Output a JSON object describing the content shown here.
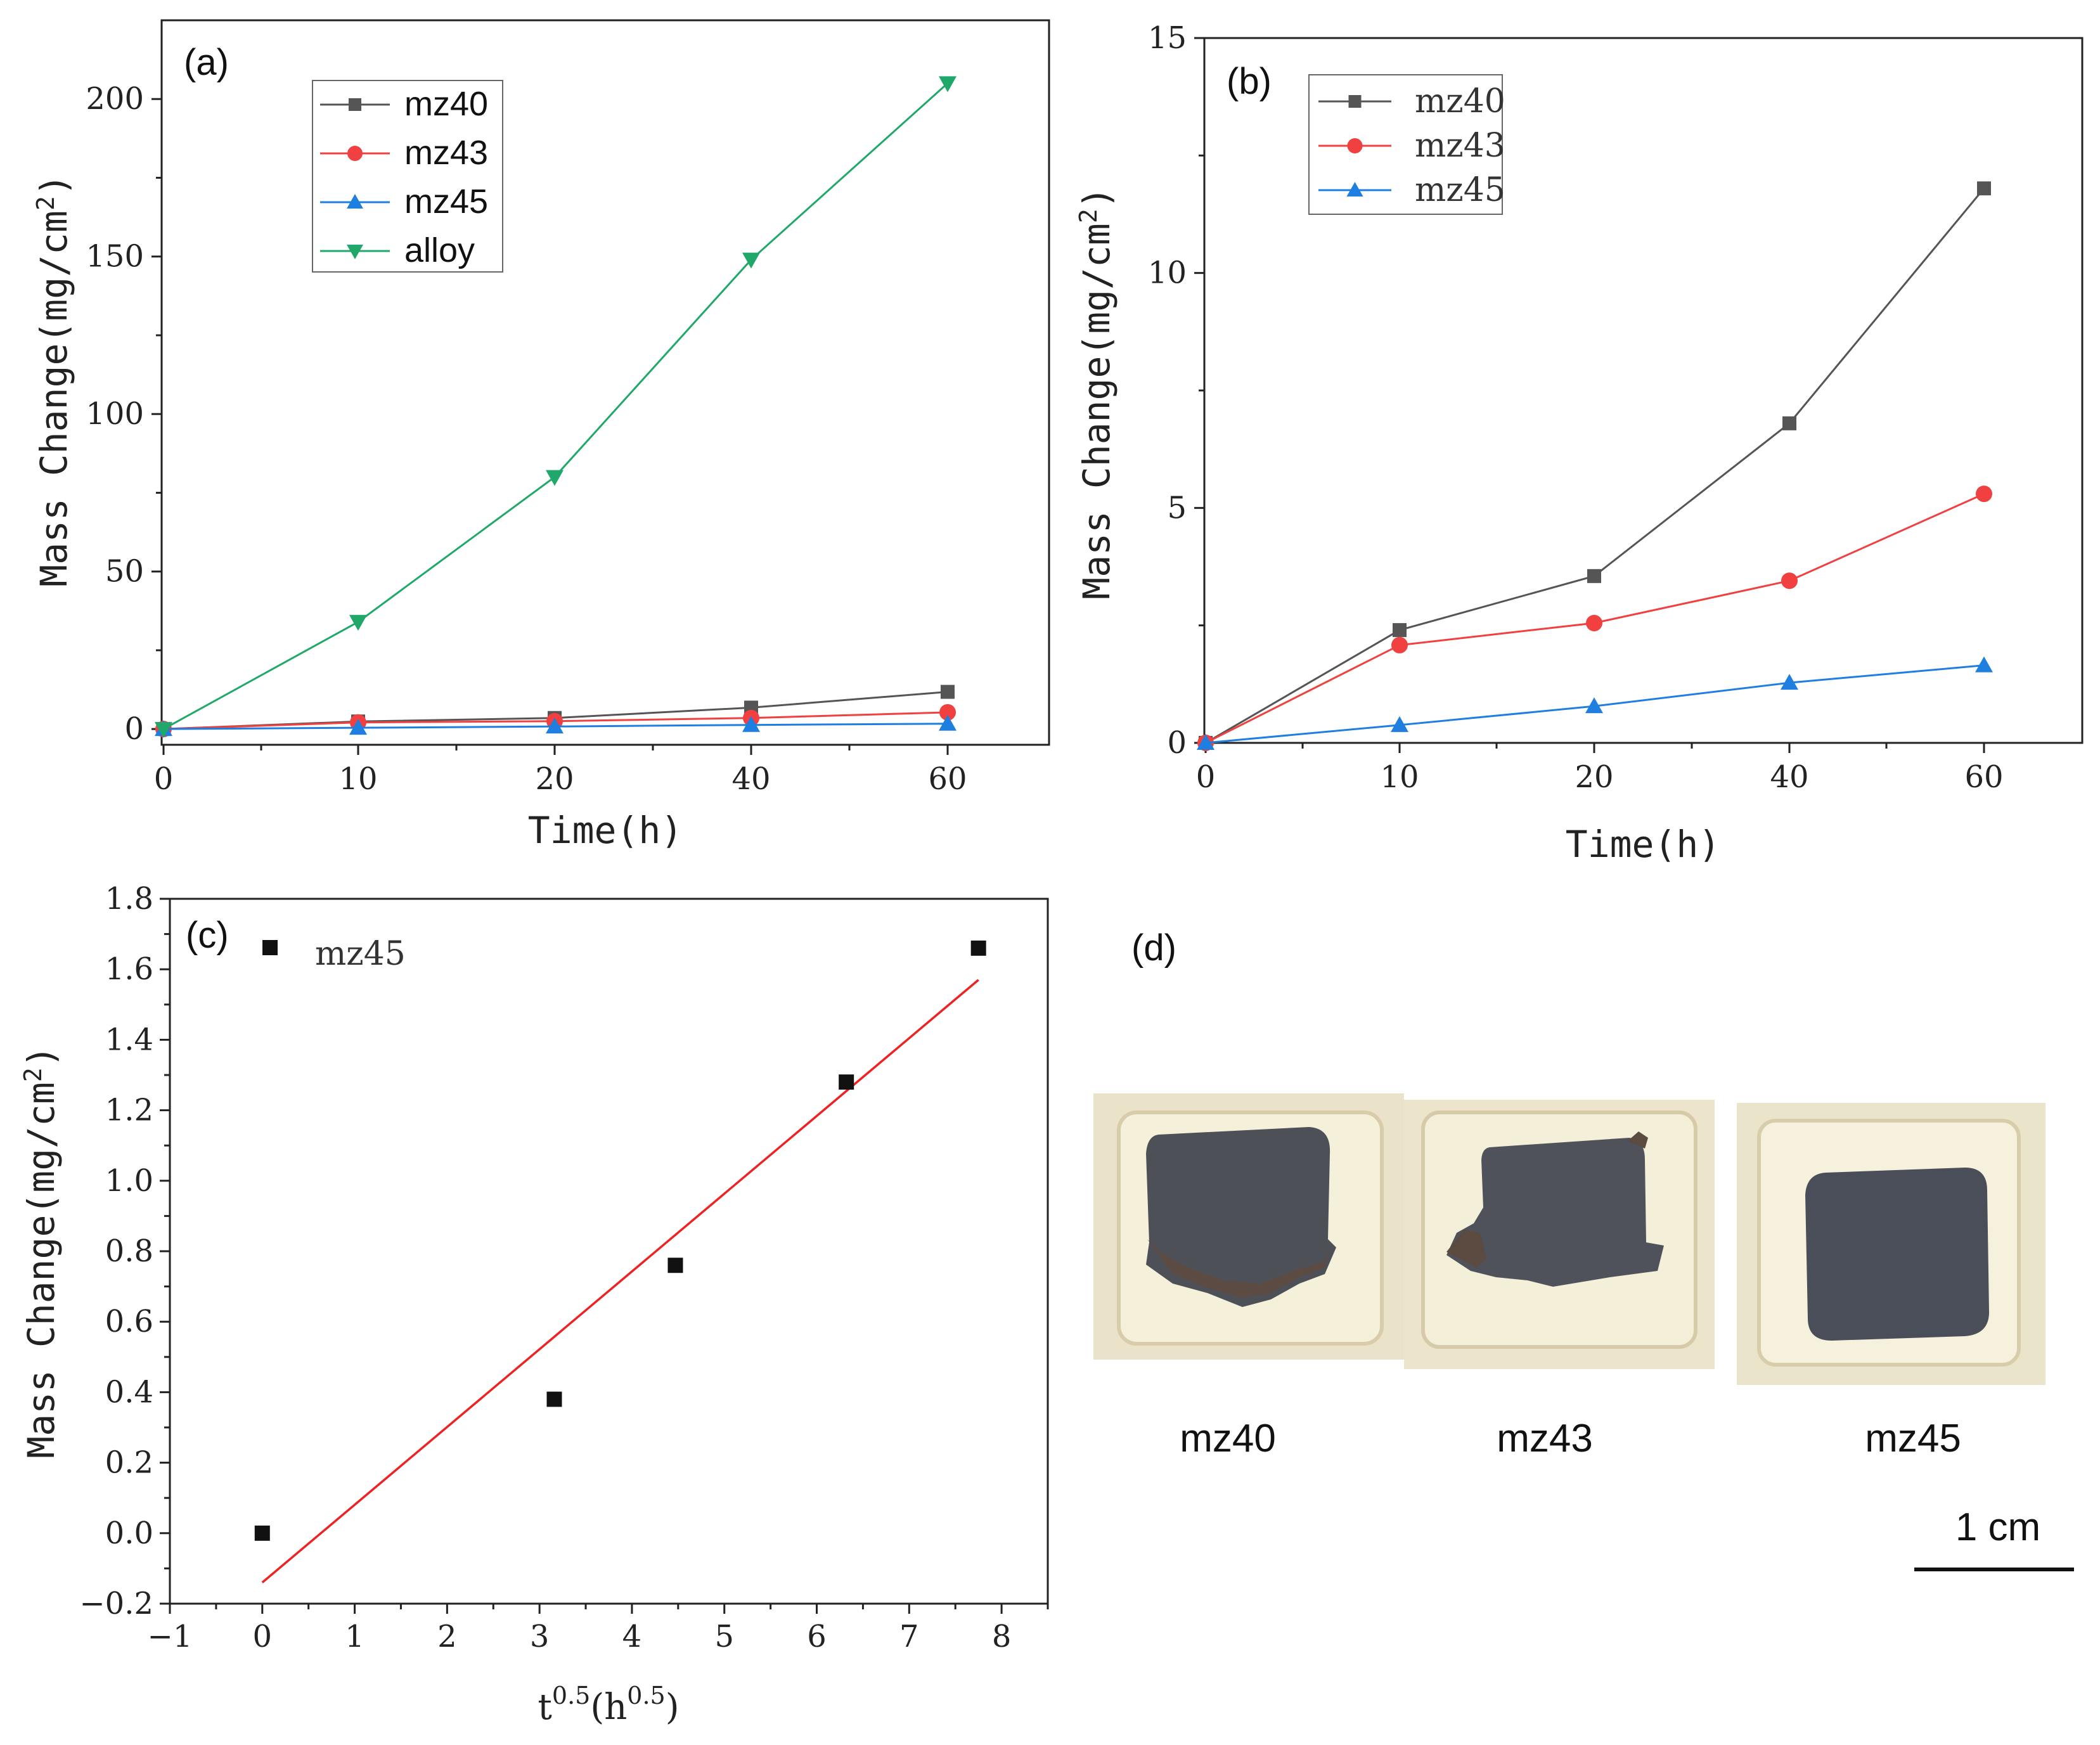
{
  "chart_data": [
    {
      "panel": "(a)",
      "type": "line",
      "xlabel": "Time(h)",
      "ylabel": "Mass Change(mg/cm²)",
      "x_categories": [
        "0",
        "10",
        "20",
        "40",
        "60"
      ],
      "yticks": [
        "0",
        "50",
        "100",
        "150",
        "200"
      ],
      "ylim": [
        -5,
        225
      ],
      "legend_position": "top-center",
      "series": [
        {
          "name": "mz40",
          "color": "#555555",
          "marker": "square",
          "values": [
            0,
            2.4,
            3.5,
            6.8,
            11.8
          ]
        },
        {
          "name": "mz43",
          "color": "#f04040",
          "marker": "circle",
          "values": [
            0,
            2.1,
            2.5,
            3.5,
            5.3
          ]
        },
        {
          "name": "mz45",
          "color": "#1f7fe0",
          "marker": "triangle-up",
          "values": [
            0,
            0.4,
            0.8,
            1.3,
            1.7
          ]
        },
        {
          "name": "alloy",
          "color": "#1fa86a",
          "marker": "triangle-down",
          "values": [
            0,
            34,
            80,
            149,
            205
          ]
        }
      ]
    },
    {
      "panel": "(b)",
      "type": "line",
      "xlabel": "Time(h)",
      "ylabel": "Mass Change(mg/cm²)",
      "x_categories": [
        "0",
        "10",
        "20",
        "40",
        "60"
      ],
      "yticks": [
        "0",
        "5",
        "10",
        "15"
      ],
      "ylim": [
        0,
        15
      ],
      "legend_position": "top-left",
      "series": [
        {
          "name": "mz40",
          "color": "#555555",
          "marker": "square",
          "values": [
            0,
            2.4,
            3.55,
            6.8,
            11.8
          ]
        },
        {
          "name": "mz43",
          "color": "#f04040",
          "marker": "circle",
          "values": [
            0,
            2.08,
            2.55,
            3.45,
            5.3
          ]
        },
        {
          "name": "mz45",
          "color": "#1f7fe0",
          "marker": "triangle-up",
          "values": [
            0,
            0.38,
            0.78,
            1.28,
            1.65
          ]
        }
      ]
    },
    {
      "panel": "(c)",
      "type": "scatter",
      "xlabel": "t^0.5(h^0.5)",
      "ylabel": "Mass Change(mg/cm²)",
      "xticks": [
        "−1",
        "0",
        "1",
        "2",
        "3",
        "4",
        "5",
        "6",
        "7",
        "8"
      ],
      "yticks": [
        "−0.2",
        "0.0",
        "0.2",
        "0.4",
        "0.6",
        "0.8",
        "1.0",
        "1.2",
        "1.4",
        "1.6",
        "1.8"
      ],
      "xlim": [
        -1,
        8.5
      ],
      "ylim": [
        -0.2,
        1.8
      ],
      "legend": "mz45",
      "points": [
        {
          "x": 0,
          "y": 0
        },
        {
          "x": 3.16,
          "y": 0.38
        },
        {
          "x": 4.47,
          "y": 0.76
        },
        {
          "x": 6.32,
          "y": 1.28
        },
        {
          "x": 7.75,
          "y": 1.66
        }
      ],
      "fit_line": {
        "color": "#ee2222",
        "x": [
          0,
          7.75
        ],
        "y": [
          -0.14,
          1.57
        ]
      }
    }
  ],
  "panel_d": {
    "label": "(d)",
    "samples": [
      "mz40",
      "mz43",
      "mz45"
    ],
    "scale_bar_label": "1 cm"
  }
}
